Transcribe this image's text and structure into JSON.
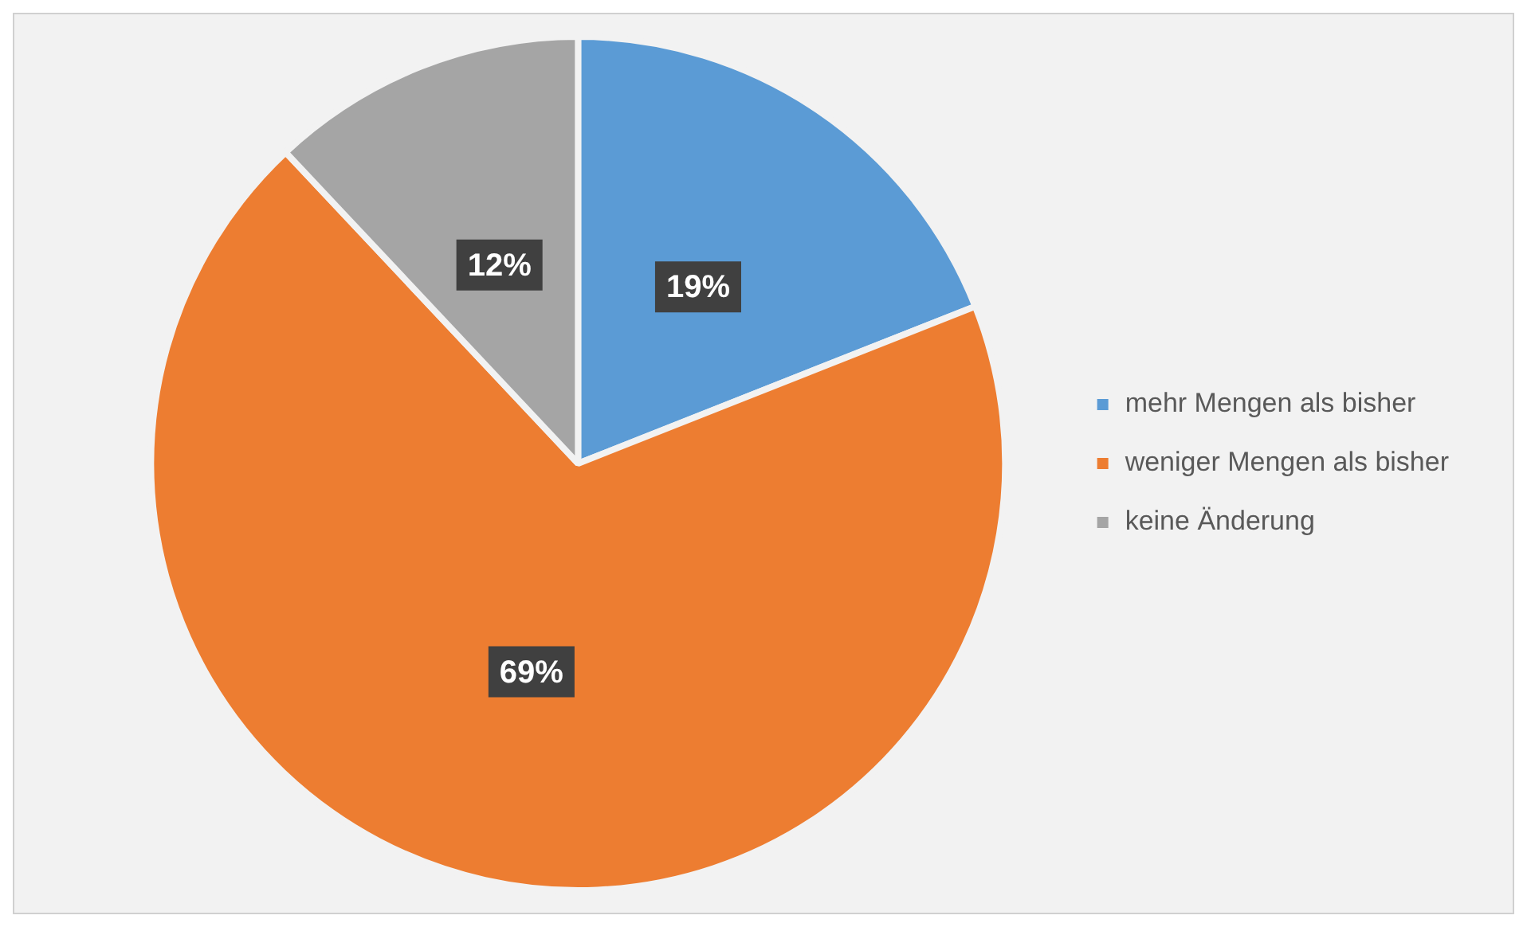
{
  "chart_data": {
    "type": "pie",
    "categories": [
      "mehr Mengen als bisher",
      "weniger Mengen als bisher",
      "keine Änderung"
    ],
    "values": [
      19,
      69,
      12
    ],
    "colors": [
      "#5b9bd5",
      "#ed7d31",
      "#a5a5a5"
    ],
    "value_labels": [
      "19%",
      "69%",
      "12%"
    ],
    "legend": "right"
  }
}
